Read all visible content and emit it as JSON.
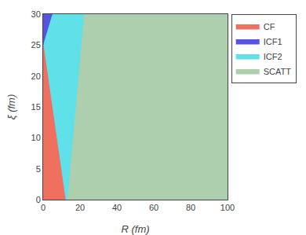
{
  "chart_data": {
    "type": "polygon",
    "xlabel": "R (fm)",
    "ylabel": "ξ (fm)",
    "xlim": [
      0,
      100
    ],
    "ylim": [
      0,
      30
    ],
    "xticks": [
      0,
      20,
      40,
      60,
      80,
      100
    ],
    "yticks": [
      0,
      5,
      10,
      15,
      20,
      25,
      30
    ],
    "grid": false,
    "legend": "upper right",
    "series": [
      {
        "name": "CF",
        "color": "#f07060",
        "x": [
          0,
          12,
          0
        ],
        "y": [
          0,
          0,
          25
        ]
      },
      {
        "name": "ICF1",
        "color": "#5555dd",
        "x": [
          0,
          0,
          5
        ],
        "y": [
          25,
          30,
          30
        ]
      },
      {
        "name": "ICF2",
        "color": "#60e0e8",
        "x": [
          5,
          22,
          13,
          12,
          0,
          5
        ],
        "y": [
          30,
          30,
          0,
          0,
          25,
          30
        ]
      },
      {
        "name": "SCATT",
        "color": "#aecfae",
        "x": [
          0,
          100,
          100,
          0
        ],
        "y": [
          0,
          0,
          30,
          30
        ]
      }
    ]
  }
}
